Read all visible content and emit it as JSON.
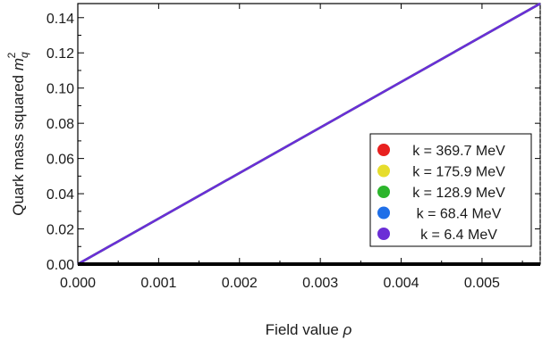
{
  "chart_data": {
    "type": "line",
    "xlabel_main": "Field value ",
    "xlabel_symbol": "ρ",
    "ylabel_main": "Quark mass squared ",
    "ylabel_symbol": "m",
    "ylabel_sub": "q",
    "ylabel_sup": "2",
    "xlim": [
      0.0,
      0.00572
    ],
    "ylim": [
      0.0,
      0.148
    ],
    "xticks": [
      "0.000",
      "0.001",
      "0.002",
      "0.003",
      "0.004",
      "0.005"
    ],
    "xtick_values": [
      0.0,
      0.001,
      0.002,
      0.003,
      0.004,
      0.005
    ],
    "yticks": [
      "0.00",
      "0.02",
      "0.04",
      "0.06",
      "0.08",
      "0.10",
      "0.12",
      "0.14"
    ],
    "ytick_values": [
      0.0,
      0.02,
      0.04,
      0.06,
      0.08,
      0.1,
      0.12,
      0.14
    ],
    "grid": false,
    "legend_position": "bottom-right",
    "series": [
      {
        "name": "k = 369.7 MeV",
        "color": "#e8201f",
        "x": [
          0.0,
          0.00572
        ],
        "y": [
          0.0,
          0.148
        ]
      },
      {
        "name": "k = 175.9 MeV",
        "color": "#e6dd2c",
        "x": [
          0.0,
          0.00572
        ],
        "y": [
          0.0,
          0.148
        ]
      },
      {
        "name": "k = 128.9 MeV",
        "color": "#2cb52c",
        "x": [
          0.0,
          0.00572
        ],
        "y": [
          0.0,
          0.148
        ]
      },
      {
        "name": "k = 68.4 MeV",
        "color": "#1f6fe8",
        "x": [
          0.0,
          0.00572
        ],
        "y": [
          0.0,
          0.148
        ]
      },
      {
        "name": "k = 6.4 MeV",
        "color": "#6b2ed6",
        "x": [
          0.0,
          0.00572
        ],
        "y": [
          0.0,
          0.148
        ]
      }
    ]
  }
}
